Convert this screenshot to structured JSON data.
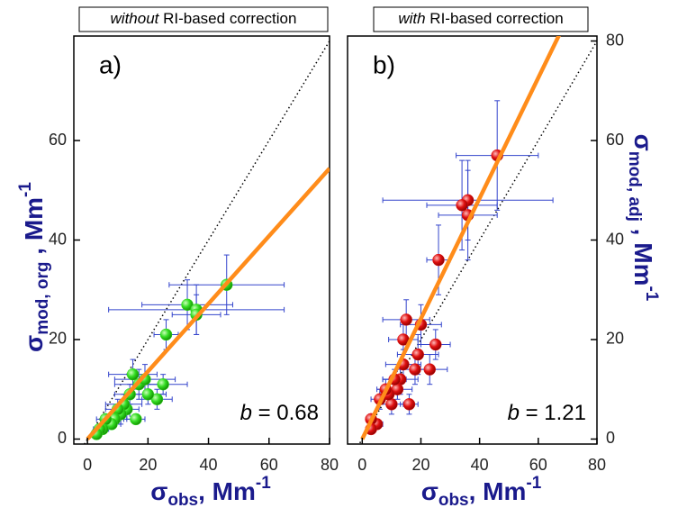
{
  "chart_data": [
    {
      "type": "scatter",
      "title": "without RI-based correction",
      "panel_label": "a)",
      "x_label": {
        "symbol": "σ",
        "sub": "obs",
        "unit": ", Mm",
        "sup": "-1"
      },
      "y_label": {
        "symbol": "σ",
        "sub": "mod, org",
        "unit": " , Mm",
        "sup": "-1"
      },
      "xlim": [
        -4.5,
        80
      ],
      "ylim": [
        -1,
        81
      ],
      "xticks": [
        0,
        20,
        40,
        60,
        80
      ],
      "yticks": [
        0,
        20,
        40,
        60
      ],
      "y_axis_side": "left",
      "color": "#33dd22",
      "error_color": "#3344cc",
      "fit_color": "#ff8c1a",
      "fit": {
        "slope": 0.68,
        "label": "b = 0.68"
      },
      "x": [
        46,
        33,
        36,
        36,
        26,
        25,
        23,
        20,
        17,
        16,
        15,
        14,
        13,
        12,
        11,
        10,
        9,
        8,
        6,
        5,
        4,
        3,
        19
      ],
      "y": [
        31,
        27,
        26,
        25,
        21,
        11,
        8,
        9,
        11,
        4,
        13,
        9,
        6,
        7,
        5,
        6,
        4,
        3,
        4,
        2,
        2,
        1,
        12
      ],
      "xerr": [
        19,
        15,
        29,
        8,
        4,
        8,
        5,
        6,
        8,
        3,
        8,
        5,
        4,
        6,
        3,
        4,
        3,
        3,
        3,
        2,
        2,
        1,
        10
      ],
      "yerr": [
        6,
        5,
        5,
        4,
        3,
        2,
        2,
        2,
        3,
        1,
        3,
        2,
        2,
        2,
        2,
        2,
        1,
        1,
        1,
        1,
        1,
        1,
        3
      ]
    },
    {
      "type": "scatter",
      "title": "with RI-based correction",
      "panel_label": "b)",
      "x_label": {
        "symbol": "σ",
        "sub": "obs",
        "unit": ", Mm",
        "sup": "-1"
      },
      "y_label": {
        "symbol": "σ",
        "sub": "mod, adj",
        "unit": " , Mm",
        "sup": "-1"
      },
      "xlim": [
        -5,
        80
      ],
      "ylim": [
        -1,
        81
      ],
      "xticks": [
        0,
        20,
        40,
        60,
        80
      ],
      "yticks": [
        0,
        20,
        40,
        60,
        80
      ],
      "y_axis_side": "right",
      "color": "#e01010",
      "error_color": "#3344cc",
      "fit_color": "#ff8c1a",
      "fit": {
        "slope": 1.21,
        "label": "b = 1.21"
      },
      "x": [
        46,
        36,
        36,
        34,
        26,
        25,
        23,
        20,
        19,
        16,
        15,
        14,
        14,
        13,
        12,
        11,
        10,
        9,
        8,
        6,
        5,
        3,
        3,
        18
      ],
      "y": [
        57,
        48,
        45,
        47,
        36,
        19,
        14,
        23,
        17,
        7,
        24,
        20,
        15,
        12,
        10,
        12,
        7,
        9,
        10,
        8,
        3,
        4,
        2,
        14
      ],
      "xerr": [
        14,
        29,
        10,
        12,
        4,
        5,
        6,
        7,
        7,
        3,
        8,
        5,
        6,
        6,
        5,
        4,
        4,
        3,
        3,
        3,
        2,
        1,
        1,
        6
      ],
      "yerr": [
        11,
        8,
        9,
        9,
        7,
        3,
        3,
        4,
        4,
        2,
        4,
        4,
        3,
        3,
        2,
        2,
        2,
        2,
        2,
        2,
        1,
        1,
        1,
        3
      ]
    }
  ]
}
